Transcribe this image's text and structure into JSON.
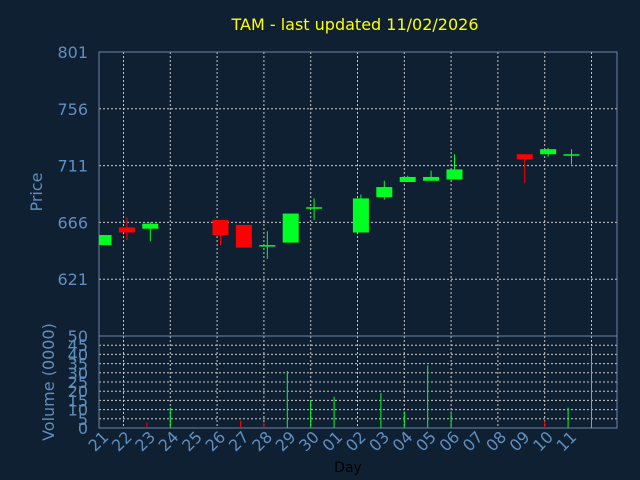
{
  "chart_data": [
    {
      "type": "candlestick",
      "title": "TAM - last updated 11/02/2026",
      "ylabel": "Price",
      "ylim": [
        576,
        801
      ],
      "y_ticks": [
        621,
        666,
        711,
        756,
        801
      ],
      "up_color": "#00ff22",
      "down_color": "#ff0000",
      "x": [
        "21",
        "22",
        "23",
        "24",
        "25",
        "26",
        "27",
        "28",
        "29",
        "30",
        "01",
        "02",
        "03",
        "04",
        "05",
        "06",
        "07",
        "08",
        "09",
        "10",
        "11"
      ],
      "candles": [
        {
          "day": "21",
          "open": 648,
          "close": 656,
          "high": 656,
          "low": 648
        },
        {
          "day": "22",
          "open": 662,
          "close": 658,
          "high": 670,
          "low": 652
        },
        {
          "day": "23",
          "open": 661,
          "close": 665,
          "high": 666,
          "low": 651
        },
        {
          "day": "26",
          "open": 668,
          "close": 656,
          "high": 668,
          "low": 648
        },
        {
          "day": "27",
          "open": 664,
          "close": 646,
          "high": 664,
          "low": 646
        },
        {
          "day": "28",
          "open": 648,
          "close": 648,
          "high": 659,
          "low": 637
        },
        {
          "day": "29",
          "open": 650,
          "close": 673,
          "high": 673,
          "low": 650
        },
        {
          "day": "30",
          "open": 677,
          "close": 678,
          "high": 685,
          "low": 668
        },
        {
          "day": "02",
          "open": 658,
          "close": 685,
          "high": 688,
          "low": 658
        },
        {
          "day": "03",
          "open": 686,
          "close": 694,
          "high": 699,
          "low": 684
        },
        {
          "day": "04",
          "open": 698,
          "close": 702,
          "high": 703,
          "low": 698
        },
        {
          "day": "05",
          "open": 699,
          "close": 702,
          "high": 707,
          "low": 699
        },
        {
          "day": "06",
          "open": 700,
          "close": 708,
          "high": 720,
          "low": 700
        },
        {
          "day": "09",
          "open": 720,
          "close": 716,
          "high": 720,
          "low": 697
        },
        {
          "day": "10",
          "open": 720,
          "close": 724,
          "high": 725,
          "low": 718
        },
        {
          "day": "11",
          "open": 720,
          "close": 720,
          "high": 724,
          "low": 712
        }
      ]
    },
    {
      "type": "bar",
      "ylabel": "Volume (0000)",
      "xlabel": "Day",
      "ylim": [
        0,
        50
      ],
      "y_ticks": [
        0,
        5,
        10,
        15,
        20,
        25,
        30,
        35,
        40,
        45,
        50
      ],
      "categories": [
        "21",
        "22",
        "23",
        "24",
        "25",
        "26",
        "27",
        "28",
        "29",
        "30",
        "01",
        "02",
        "03",
        "04",
        "05",
        "06",
        "07",
        "08",
        "09",
        "10",
        "11"
      ],
      "values": [
        0,
        3,
        11,
        0,
        0,
        4,
        3,
        31,
        15,
        17,
        0,
        19,
        9,
        34,
        9,
        0,
        0,
        0,
        4,
        11,
        44
      ],
      "colors": [
        "#00ff22",
        "#ff0000",
        "#00ff22",
        "#00ff22",
        "#00ff22",
        "#ff0000",
        "#ff0000",
        "#00ff22",
        "#00ff22",
        "#00ff22",
        "#00ff22",
        "#00ff22",
        "#00ff22",
        "#00ff22",
        "#00ff22",
        "#00ff22",
        "#00ff22",
        "#00ff22",
        "#ff0000",
        "#00ff22",
        "#00ff22"
      ]
    }
  ]
}
